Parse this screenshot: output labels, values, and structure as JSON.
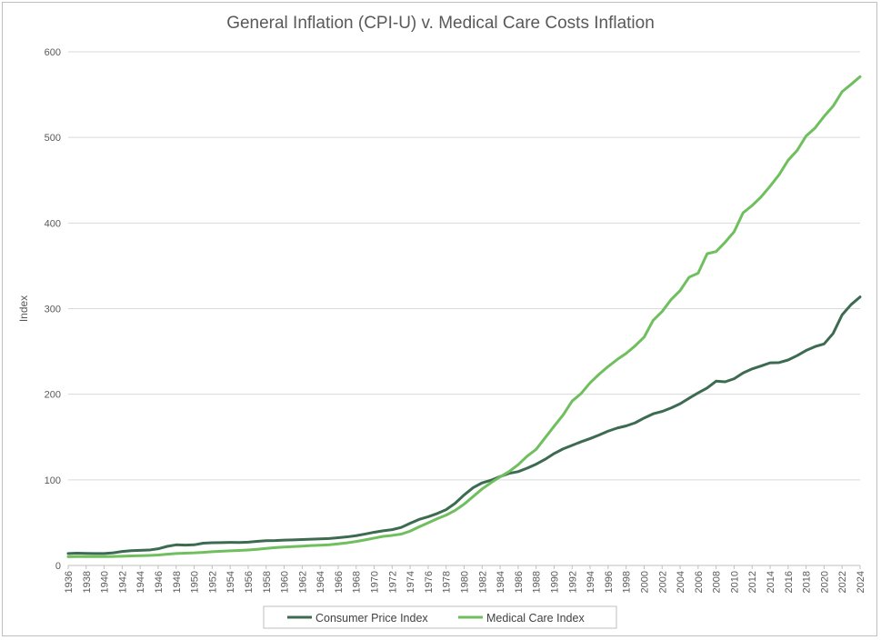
{
  "chart_data": {
    "type": "line",
    "title": "General Inflation (CPI-U) v. Medical Care Costs Inflation",
    "xlabel": "",
    "ylabel": "Index",
    "ylim": [
      0,
      600
    ],
    "yticks": [
      0,
      100,
      200,
      300,
      400,
      500,
      600
    ],
    "xlim": [
      1936,
      2024
    ],
    "grid": "horizontal",
    "legend": "bottom",
    "x": [
      1936,
      1937,
      1938,
      1939,
      1940,
      1941,
      1942,
      1943,
      1944,
      1945,
      1946,
      1947,
      1948,
      1949,
      1950,
      1951,
      1952,
      1953,
      1954,
      1955,
      1956,
      1957,
      1958,
      1959,
      1960,
      1961,
      1962,
      1963,
      1964,
      1965,
      1966,
      1967,
      1968,
      1969,
      1970,
      1971,
      1972,
      1973,
      1974,
      1975,
      1976,
      1977,
      1978,
      1979,
      1980,
      1981,
      1982,
      1983,
      1984,
      1985,
      1986,
      1987,
      1988,
      1989,
      1990,
      1991,
      1992,
      1993,
      1994,
      1995,
      1996,
      1997,
      1998,
      1999,
      2000,
      2001,
      2002,
      2003,
      2004,
      2005,
      2006,
      2007,
      2008,
      2009,
      2010,
      2011,
      2012,
      2013,
      2014,
      2015,
      2016,
      2017,
      2018,
      2019,
      2020,
      2021,
      2022,
      2023,
      2024
    ],
    "series": [
      {
        "name": "Consumer Price Index",
        "color": "#3d6b52",
        "values": [
          13.9,
          14.4,
          14.1,
          13.9,
          14.0,
          14.7,
          16.3,
          17.3,
          17.6,
          18.0,
          19.5,
          22.3,
          24.1,
          23.8,
          24.1,
          26.0,
          26.5,
          26.7,
          26.9,
          26.8,
          27.2,
          28.1,
          28.9,
          29.1,
          29.6,
          29.9,
          30.2,
          30.6,
          31.0,
          31.5,
          32.4,
          33.4,
          34.8,
          36.7,
          38.8,
          40.5,
          41.8,
          44.4,
          49.3,
          53.8,
          56.9,
          60.6,
          65.2,
          72.6,
          82.4,
          90.9,
          96.5,
          99.6,
          103.9,
          107.6,
          109.6,
          113.6,
          118.3,
          124.0,
          130.7,
          136.2,
          140.3,
          144.5,
          148.2,
          152.4,
          156.9,
          160.5,
          163.0,
          166.6,
          172.2,
          177.1,
          179.9,
          184.0,
          188.9,
          195.3,
          201.6,
          207.3,
          215.3,
          214.5,
          218.1,
          224.9,
          229.6,
          233.0,
          236.7,
          237.0,
          240.0,
          245.1,
          251.1,
          255.7,
          258.8,
          271.0,
          292.7,
          304.7,
          313.7
        ]
      },
      {
        "name": "Medical Care Index",
        "color": "#70bf5e",
        "values": [
          10.2,
          10.3,
          10.3,
          10.3,
          10.4,
          10.5,
          10.7,
          11.1,
          11.4,
          11.7,
          12.2,
          13.1,
          14.0,
          14.4,
          14.7,
          15.3,
          16.0,
          16.6,
          17.1,
          17.5,
          18.1,
          18.9,
          19.9,
          20.8,
          21.5,
          22.1,
          22.6,
          23.2,
          23.6,
          24.2,
          25.2,
          26.4,
          28.0,
          29.9,
          31.9,
          34.0,
          35.1,
          36.6,
          40.1,
          45.1,
          49.8,
          54.6,
          58.8,
          64.3,
          71.6,
          80.5,
          89.4,
          96.8,
          103.5,
          109.7,
          117.7,
          127.6,
          135.6,
          149.1,
          162.7,
          175.8,
          192.0,
          200.9,
          213.4,
          223.4,
          232.4,
          240.5,
          247.7,
          256.5,
          266.7,
          286.3,
          296.6,
          310.6,
          321.1,
          336.7,
          341.4,
          364.1,
          366.7,
          377.5,
          389.8,
          412.0,
          420.4,
          430.6,
          443.0,
          456.4,
          473.3,
          484.7,
          501.7,
          511.1,
          524.6,
          536.5,
          553.4,
          562.0,
          571.0
        ]
      }
    ]
  }
}
